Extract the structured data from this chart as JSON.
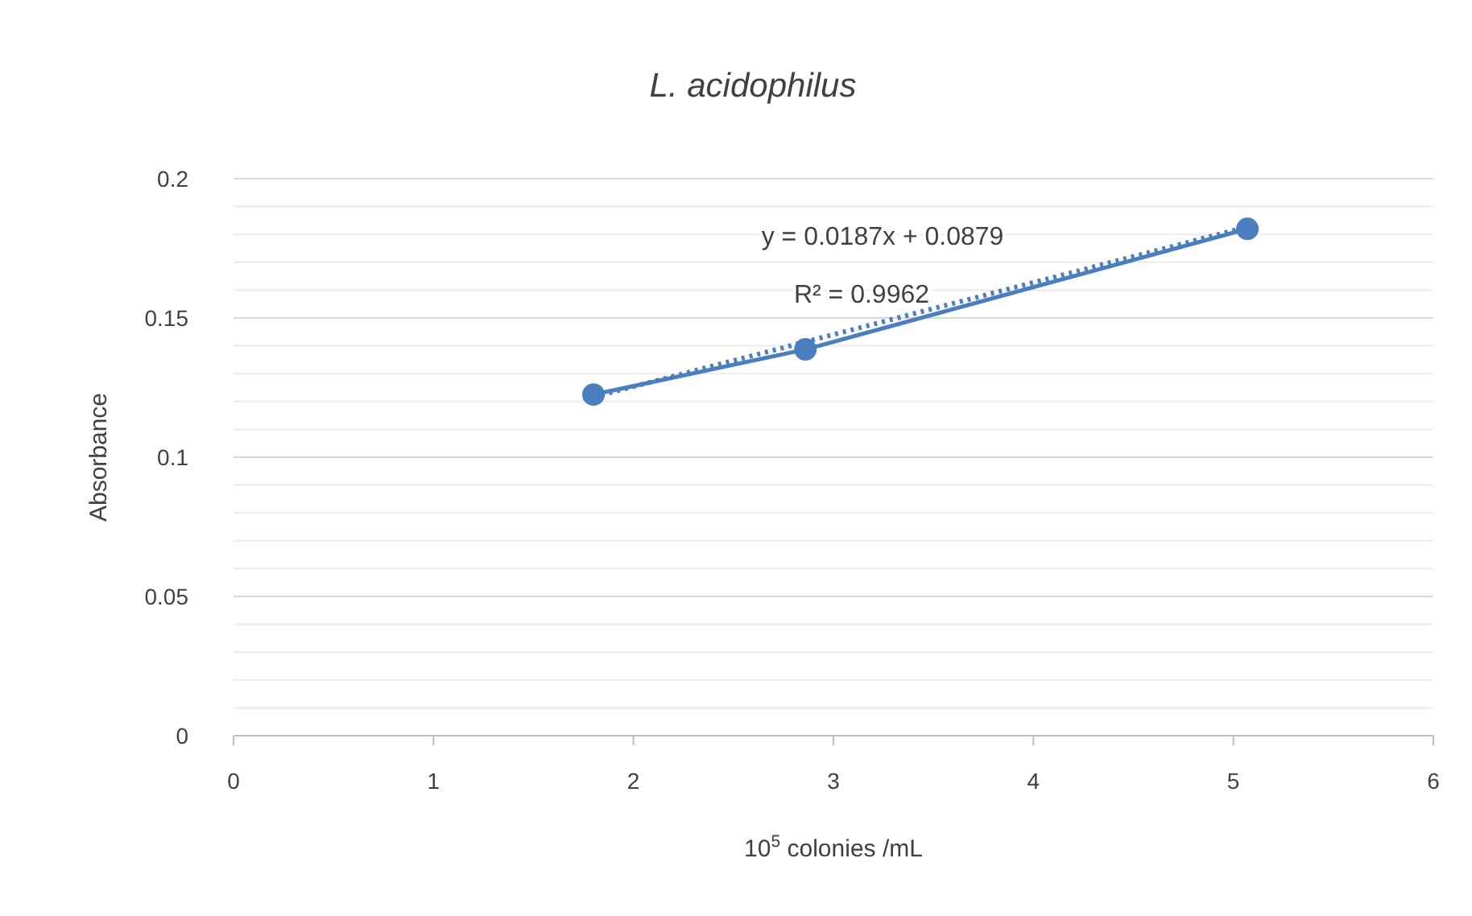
{
  "chart_data": {
    "type": "line",
    "title": "L. acidophilus",
    "xlabel": "10$^{5}$ colonies /mL",
    "ylabel": "Absorbance",
    "xlim": [
      0,
      6
    ],
    "xticks": [
      0,
      1,
      2,
      3,
      4,
      5,
      6
    ],
    "ylim": [
      0,
      0.2
    ],
    "yticks": [
      0,
      {
        "value": 0.01,
        "label": null
      },
      {
        "value": 0.02,
        "label": null
      },
      {
        "value": 0.03,
        "label": null
      },
      {
        "value": 0.04,
        "label": null
      },
      0.05,
      {
        "value": 0.06,
        "label": null
      },
      {
        "value": 0.07,
        "label": null
      },
      {
        "value": 0.08,
        "label": null
      },
      {
        "value": 0.09,
        "label": null
      },
      0.1,
      {
        "value": 0.11,
        "label": null
      },
      {
        "value": 0.12,
        "label": null
      },
      {
        "value": 0.13,
        "label": null
      },
      {
        "value": 0.14,
        "label": null
      },
      0.15,
      {
        "value": 0.16,
        "label": null
      },
      {
        "value": 0.17,
        "label": null
      },
      {
        "value": 0.18,
        "label": null
      },
      {
        "value": 0.19,
        "label": null
      },
      0.2
    ],
    "grid": "y",
    "series": [
      {
        "color": "#4a7ebf",
        "x": [
          1.8,
          2.86,
          5.07
        ],
        "values": [
          0.1225,
          0.1387,
          0.182
        ],
        "marker": "circle",
        "line_style": "solid"
      },
      {
        "color": "#4a7ebf",
        "x": [
          1.8,
          5.07
        ],
        "values": [
          0.1216,
          0.1827
        ],
        "marker": "none",
        "line_style": "dotted"
      }
    ],
    "annotations": [
      "y = 0.0187x + 0.0879",
      "R² = 0.9962"
    ]
  }
}
